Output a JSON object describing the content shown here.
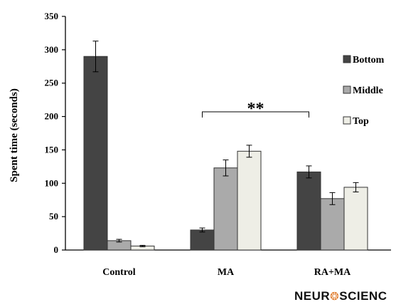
{
  "chart_data": {
    "type": "bar",
    "title": "",
    "xlabel": "",
    "ylabel": "Spent time (seconds)",
    "ylim": [
      0,
      350
    ],
    "yticks": [
      0,
      50,
      100,
      150,
      200,
      250,
      300,
      350
    ],
    "categories": [
      "Control",
      "MA",
      "RA+MA"
    ],
    "series": [
      {
        "name": "Bottom",
        "color": "#444444",
        "values": [
          290,
          30,
          117
        ],
        "errors": [
          23,
          3,
          9
        ]
      },
      {
        "name": "Middle",
        "color": "#aaaaaa",
        "values": [
          14,
          123,
          77
        ],
        "errors": [
          2,
          12,
          9
        ]
      },
      {
        "name": "Top",
        "color": "#eeeee6",
        "values": [
          6,
          148,
          94
        ],
        "errors": [
          1,
          9,
          7
        ]
      }
    ],
    "legend_position": "right",
    "grid": false,
    "annotations": [
      {
        "text": "**",
        "between": [
          "MA",
          "RA+MA"
        ]
      }
    ]
  },
  "watermark": {
    "left": "NEUR",
    "right": "SCIENC"
  }
}
